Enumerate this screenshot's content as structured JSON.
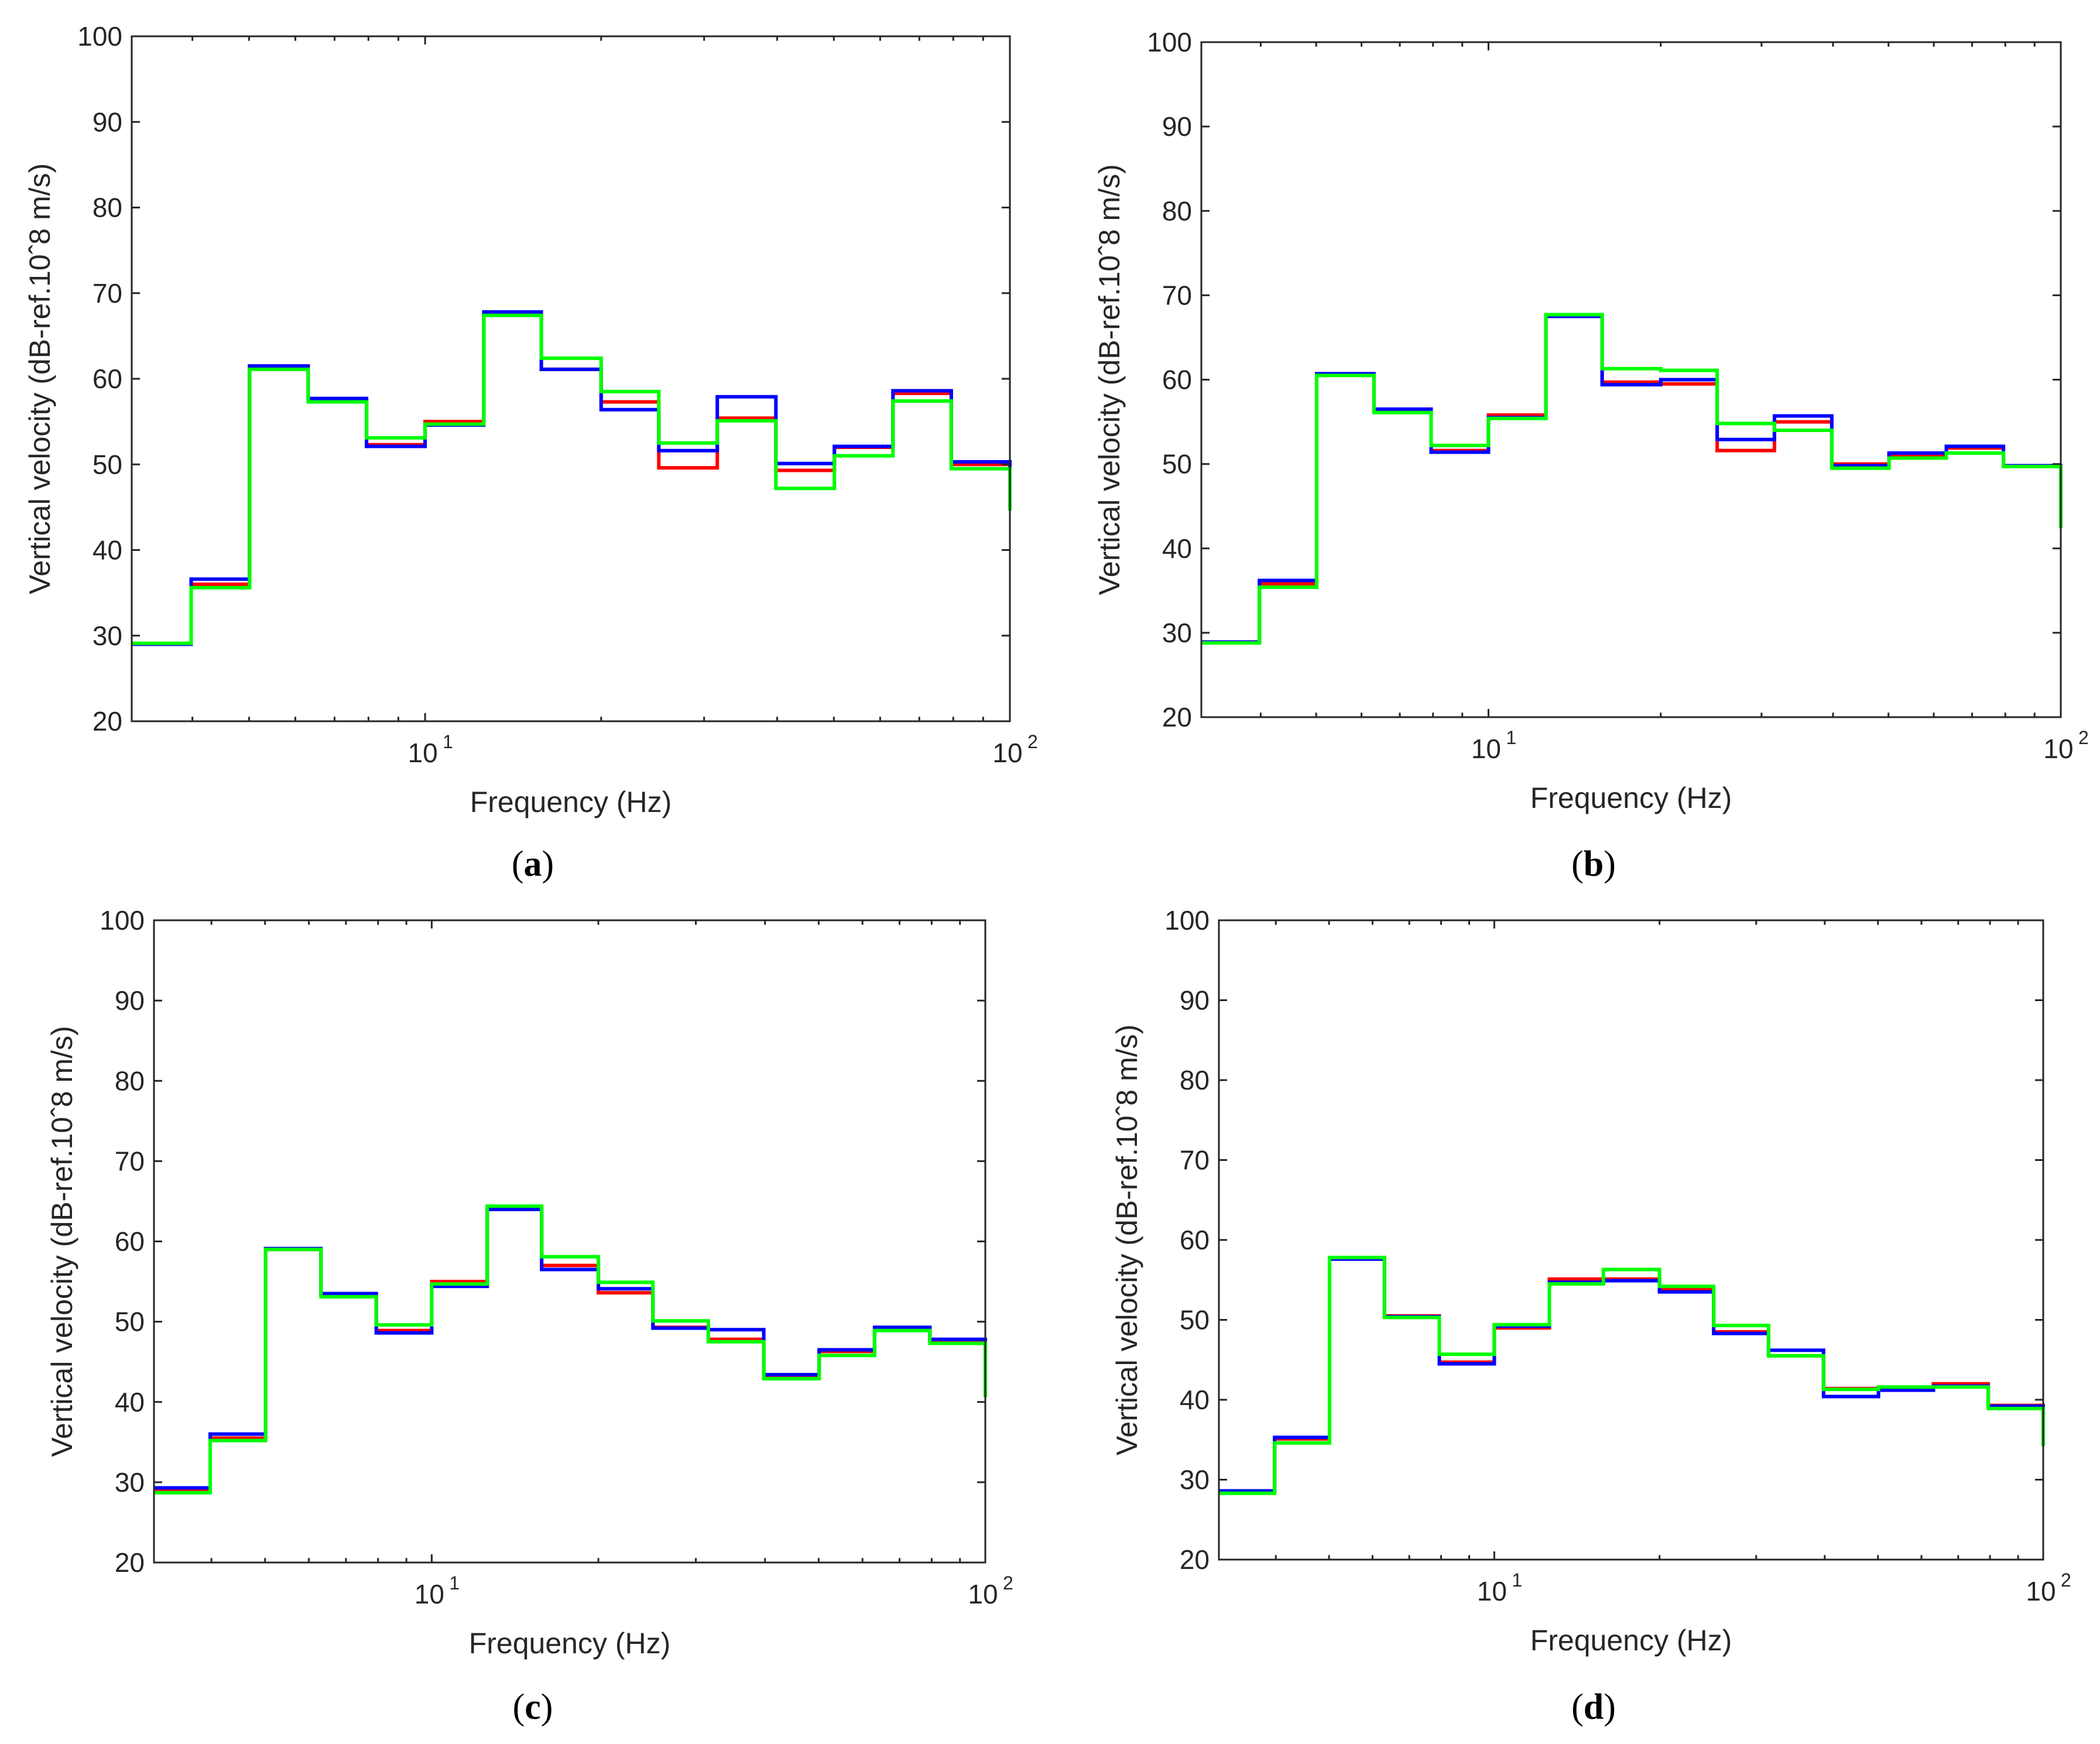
{
  "colors": {
    "red": "#ff0000",
    "blue": "#0000ff",
    "green": "#00ff00",
    "axis": "#262626"
  },
  "chart_data": [
    {
      "type": "line",
      "step": true,
      "caption": "a",
      "xlabel": "Frequency (Hz)",
      "ylabel": "Vertical velocity (dB-ref.10ˆ8 m/s)",
      "xscale": "log",
      "xlim": [
        3.15,
        100
      ],
      "ylim": [
        20,
        100
      ],
      "yticks": [
        20,
        30,
        40,
        50,
        60,
        70,
        80,
        90,
        100
      ],
      "xticks": [
        {
          "base": "10",
          "exp": "1",
          "value": 10
        },
        {
          "base": "10",
          "exp": "2",
          "value": 100
        }
      ],
      "band_edges": [
        3.15,
        3.98,
        5.01,
        6.31,
        7.94,
        10,
        12.6,
        15.8,
        20,
        25.1,
        31.6,
        39.8,
        50.1,
        63.1,
        79.4,
        100
      ],
      "series": [
        {
          "name": "red",
          "color": "#ff0000",
          "values": [
            29,
            36,
            61.3,
            57.5,
            52.3,
            55,
            67.6,
            61.1,
            57.3,
            49.6,
            55.4,
            49.3,
            52,
            58.3,
            50,
            45
          ]
        },
        {
          "name": "blue",
          "color": "#0000ff",
          "values": [
            29,
            36.6,
            61.5,
            57.7,
            52.1,
            54.6,
            67.8,
            61.1,
            56.4,
            51.6,
            57.9,
            50.1,
            52.1,
            58.6,
            50.3,
            45.8
          ]
        },
        {
          "name": "green",
          "color": "#00ff00",
          "values": [
            29.1,
            35.6,
            61.1,
            57.3,
            53.1,
            54.7,
            67.4,
            62.4,
            58.5,
            52.5,
            55.1,
            47.2,
            51,
            57.4,
            49.5,
            44.6
          ]
        }
      ]
    },
    {
      "type": "line",
      "step": true,
      "caption": "b",
      "xlabel": "Frequency (Hz)",
      "ylabel": "Vertical velocity (dB-ref.10ˆ8 m/s)",
      "xscale": "log",
      "xlim": [
        3.15,
        100
      ],
      "ylim": [
        20,
        100
      ],
      "yticks": [
        20,
        30,
        40,
        50,
        60,
        70,
        80,
        90,
        100
      ],
      "xticks": [
        {
          "base": "10",
          "exp": "1",
          "value": 10
        },
        {
          "base": "10",
          "exp": "2",
          "value": 100
        }
      ],
      "band_edges": [
        3.15,
        3.98,
        5.01,
        6.31,
        7.94,
        10,
        12.6,
        15.8,
        20,
        25.1,
        31.6,
        39.8,
        50.1,
        63.1,
        79.4,
        100
      ],
      "series": [
        {
          "name": "red",
          "color": "#ff0000",
          "values": [
            28.9,
            35.8,
            60.6,
            56.4,
            51.6,
            55.8,
            67.6,
            59.7,
            59.5,
            51.6,
            55,
            50,
            51,
            51.9,
            49.8,
            42.7
          ]
        },
        {
          "name": "blue",
          "color": "#0000ff",
          "values": [
            28.9,
            36.2,
            60.7,
            56.5,
            51.4,
            55.5,
            67.5,
            59.4,
            60,
            52.9,
            55.7,
            49.8,
            51.3,
            52.1,
            49.8,
            43
          ]
        },
        {
          "name": "green",
          "color": "#00ff00",
          "values": [
            28.8,
            35.4,
            60.5,
            56.1,
            52.2,
            55.4,
            67.7,
            61.3,
            61.1,
            54.8,
            54,
            49.5,
            50.7,
            51.3,
            49.7,
            42.4
          ]
        }
      ]
    },
    {
      "type": "line",
      "step": true,
      "caption": "c",
      "xlabel": "Frequency (Hz)",
      "ylabel": "Vertical velocity (dB-ref.10ˆ8 m/s)",
      "xscale": "log",
      "xlim": [
        3.15,
        100
      ],
      "ylim": [
        20,
        100
      ],
      "yticks": [
        20,
        30,
        40,
        50,
        60,
        70,
        80,
        90,
        100
      ],
      "xticks": [
        {
          "base": "10",
          "exp": "1",
          "value": 10
        },
        {
          "base": "10",
          "exp": "2",
          "value": 100
        }
      ],
      "band_edges": [
        3.15,
        3.98,
        5.01,
        6.31,
        7.94,
        10,
        12.6,
        15.8,
        20,
        25.1,
        31.6,
        39.8,
        50.1,
        63.1,
        79.4,
        100
      ],
      "series": [
        {
          "name": "red",
          "color": "#ff0000",
          "values": [
            29,
            35.5,
            59,
            53.4,
            48.9,
            55,
            64.1,
            57,
            53.6,
            49.3,
            47.8,
            43,
            46.3,
            49.2,
            47.7,
            40.7
          ]
        },
        {
          "name": "blue",
          "color": "#0000ff",
          "values": [
            29.3,
            36,
            59.1,
            53.5,
            48.6,
            54.4,
            64,
            56.5,
            54.1,
            49.2,
            49,
            43.4,
            46.5,
            49.3,
            47.8,
            41
          ]
        },
        {
          "name": "green",
          "color": "#00ff00",
          "values": [
            28.7,
            35.2,
            59,
            53.1,
            49.6,
            54.7,
            64.4,
            58.1,
            54.9,
            50.1,
            47.5,
            42.9,
            45.8,
            48.9,
            47.3,
            40.6
          ]
        }
      ]
    },
    {
      "type": "line",
      "step": true,
      "caption": "d",
      "xlabel": "Frequency (Hz)",
      "ylabel": "Vertical velocity (dB-ref.10ˆ8 m/s)",
      "xscale": "log",
      "xlim": [
        3.15,
        100
      ],
      "ylim": [
        20,
        100
      ],
      "yticks": [
        20,
        30,
        40,
        50,
        60,
        70,
        80,
        90,
        100
      ],
      "xticks": [
        {
          "base": "10",
          "exp": "1",
          "value": 10
        },
        {
          "base": "10",
          "exp": "2",
          "value": 100
        }
      ],
      "band_edges": [
        3.15,
        3.98,
        5.01,
        6.31,
        7.94,
        10,
        12.6,
        15.8,
        20,
        25.1,
        31.6,
        39.8,
        50.1,
        63.1,
        79.4,
        100
      ],
      "series": [
        {
          "name": "red",
          "color": "#ff0000",
          "values": [
            28.5,
            35.1,
            57.7,
            50.5,
            44.7,
            49,
            55.1,
            55.1,
            53.9,
            48.5,
            45.5,
            41.4,
            41.4,
            42,
            39.3,
            34.5
          ]
        },
        {
          "name": "blue",
          "color": "#0000ff",
          "values": [
            28.6,
            35.3,
            57.6,
            50.4,
            44.5,
            49.2,
            54.7,
            54.9,
            53.5,
            48.3,
            46.2,
            40.4,
            41.2,
            41.7,
            39.2,
            34.6
          ]
        },
        {
          "name": "green",
          "color": "#00ff00",
          "values": [
            28.3,
            34.6,
            57.8,
            50.3,
            45.7,
            49.4,
            54.5,
            56.3,
            54.2,
            49.3,
            45.5,
            41.3,
            41.6,
            41.6,
            38.9,
            34.2
          ]
        }
      ]
    }
  ]
}
